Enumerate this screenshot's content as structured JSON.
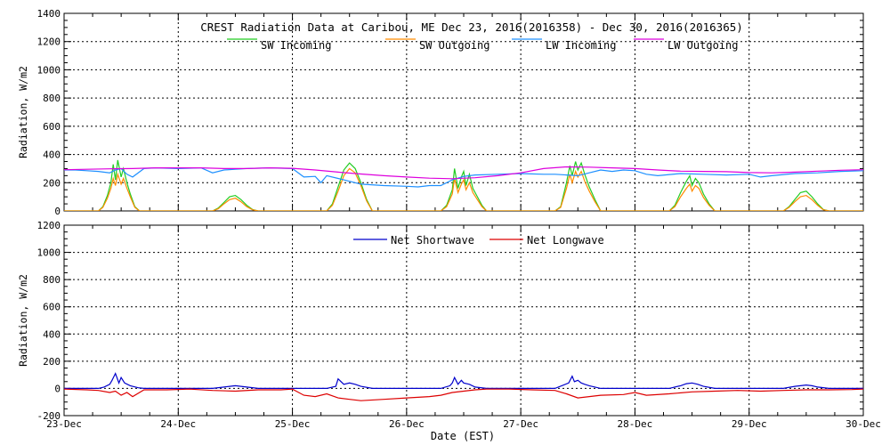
{
  "title": "CREST Radiation Data at Caribou, ME   Dec 23, 2016(2016358) - Dec 30, 2016(2016365)",
  "x_axis_label": "Date (EST)",
  "chart_data": [
    {
      "type": "line",
      "title": "CREST Radiation Data at Caribou, ME   Dec 23, 2016(2016358) - Dec 30, 2016(2016365)",
      "xlabel": "Date (EST)",
      "ylabel": "Radiation, W/m2",
      "x_ticks": [
        "23-Dec",
        "24-Dec",
        "25-Dec",
        "26-Dec",
        "27-Dec",
        "28-Dec",
        "29-Dec",
        "30-Dec"
      ],
      "xlim": [
        0,
        7
      ],
      "ylim": [
        0,
        1400
      ],
      "y_ticks": [
        0,
        200,
        400,
        600,
        800,
        1000,
        1200,
        1400
      ],
      "grid": true,
      "legend_position": "top",
      "series": [
        {
          "name": "SW Incoming",
          "color": "#22cc22",
          "x": [
            0,
            0.3,
            0.34,
            0.38,
            0.41,
            0.43,
            0.45,
            0.47,
            0.5,
            0.52,
            0.55,
            0.58,
            0.62,
            0.66,
            0.7,
            1.3,
            1.35,
            1.4,
            1.45,
            1.5,
            1.55,
            1.6,
            1.65,
            1.7,
            2.3,
            2.35,
            2.4,
            2.45,
            2.5,
            2.55,
            2.6,
            2.65,
            2.7,
            3.3,
            3.35,
            3.4,
            3.42,
            3.45,
            3.48,
            3.5,
            3.52,
            3.55,
            3.58,
            3.62,
            3.66,
            3.7,
            4.3,
            4.35,
            4.4,
            4.43,
            4.45,
            4.48,
            4.5,
            4.53,
            4.56,
            4.6,
            4.65,
            4.7,
            5.3,
            5.35,
            5.4,
            5.45,
            5.48,
            5.5,
            5.53,
            5.56,
            5.6,
            5.65,
            5.7,
            6.3,
            6.35,
            6.4,
            6.45,
            6.5,
            6.55,
            6.6,
            6.65,
            6.7,
            7
          ],
          "values": [
            0,
            0,
            30,
            110,
            200,
            330,
            220,
            360,
            240,
            300,
            200,
            120,
            30,
            0,
            0,
            0,
            20,
            60,
            100,
            110,
            80,
            40,
            10,
            0,
            0,
            50,
            170,
            290,
            340,
            300,
            200,
            80,
            0,
            0,
            40,
            150,
            300,
            160,
            240,
            280,
            180,
            260,
            160,
            100,
            40,
            0,
            0,
            30,
            200,
            320,
            250,
            350,
            290,
            340,
            260,
            170,
            80,
            0,
            0,
            40,
            130,
            210,
            250,
            180,
            230,
            200,
            120,
            50,
            0,
            0,
            30,
            80,
            130,
            140,
            100,
            50,
            10,
            0,
            0
          ]
        },
        {
          "name": "SW Outgoing",
          "color": "#ff8c00",
          "x": [
            0,
            0.3,
            0.34,
            0.38,
            0.41,
            0.43,
            0.45,
            0.47,
            0.5,
            0.52,
            0.55,
            0.58,
            0.62,
            0.66,
            0.7,
            1.3,
            1.35,
            1.4,
            1.45,
            1.5,
            1.55,
            1.6,
            1.65,
            1.7,
            2.3,
            2.35,
            2.4,
            2.45,
            2.5,
            2.55,
            2.6,
            2.65,
            2.7,
            3.3,
            3.35,
            3.4,
            3.42,
            3.45,
            3.48,
            3.5,
            3.52,
            3.55,
            3.58,
            3.62,
            3.66,
            3.7,
            4.3,
            4.35,
            4.4,
            4.43,
            4.45,
            4.48,
            4.5,
            4.53,
            4.56,
            4.6,
            4.65,
            4.7,
            5.3,
            5.35,
            5.4,
            5.45,
            5.48,
            5.5,
            5.53,
            5.56,
            5.6,
            5.65,
            5.7,
            6.3,
            6.35,
            6.4,
            6.45,
            6.5,
            6.55,
            6.6,
            6.65,
            6.7,
            7
          ],
          "values": [
            0,
            0,
            25,
            90,
            160,
            230,
            180,
            260,
            190,
            230,
            160,
            100,
            25,
            0,
            0,
            0,
            15,
            50,
            80,
            90,
            65,
            30,
            8,
            0,
            0,
            40,
            140,
            250,
            300,
            270,
            180,
            70,
            0,
            0,
            30,
            120,
            230,
            130,
            190,
            220,
            150,
            200,
            130,
            80,
            30,
            0,
            0,
            25,
            160,
            260,
            200,
            280,
            240,
            280,
            210,
            140,
            65,
            0,
            0,
            30,
            100,
            160,
            190,
            140,
            180,
            160,
            95,
            40,
            0,
            0,
            25,
            65,
            100,
            110,
            80,
            40,
            8,
            0,
            0
          ]
        },
        {
          "name": "LW Incoming",
          "color": "#1e90ff",
          "x": [
            0,
            0.1,
            0.2,
            0.3,
            0.4,
            0.45,
            0.5,
            0.55,
            0.6,
            0.7,
            0.8,
            1.0,
            1.2,
            1.3,
            1.4,
            1.5,
            1.6,
            1.8,
            2.0,
            2.1,
            2.2,
            2.25,
            2.3,
            2.4,
            2.5,
            2.6,
            2.8,
            3.0,
            3.1,
            3.2,
            3.3,
            3.4,
            3.5,
            3.6,
            3.8,
            4.0,
            4.2,
            4.3,
            4.4,
            4.5,
            4.6,
            4.7,
            4.8,
            4.9,
            5.0,
            5.1,
            5.2,
            5.4,
            5.6,
            5.8,
            6.0,
            6.1,
            6.2,
            6.4,
            6.6,
            6.8,
            7.0
          ],
          "values": [
            290,
            290,
            285,
            280,
            270,
            290,
            300,
            260,
            240,
            300,
            305,
            300,
            305,
            270,
            290,
            295,
            300,
            305,
            300,
            240,
            245,
            200,
            250,
            230,
            210,
            190,
            180,
            175,
            170,
            180,
            180,
            220,
            245,
            255,
            260,
            265,
            260,
            260,
            255,
            250,
            270,
            290,
            280,
            290,
            285,
            260,
            250,
            265,
            260,
            255,
            260,
            240,
            250,
            265,
            270,
            280,
            285
          ]
        },
        {
          "name": "LW Outgoing",
          "color": "#dd00dd",
          "x": [
            0,
            0.2,
            0.4,
            0.6,
            0.8,
            1.0,
            1.2,
            1.4,
            1.6,
            1.8,
            2.0,
            2.2,
            2.4,
            2.6,
            2.8,
            3.0,
            3.2,
            3.4,
            3.6,
            3.8,
            4.0,
            4.2,
            4.4,
            4.6,
            4.8,
            5.0,
            5.2,
            5.4,
            5.6,
            5.8,
            6.0,
            6.2,
            6.4,
            6.6,
            6.8,
            7.0
          ],
          "values": [
            292,
            295,
            298,
            300,
            305,
            305,
            305,
            300,
            300,
            305,
            302,
            290,
            275,
            262,
            250,
            240,
            232,
            228,
            235,
            250,
            270,
            300,
            312,
            310,
            305,
            300,
            290,
            282,
            280,
            278,
            272,
            270,
            275,
            282,
            288,
            292
          ]
        }
      ]
    },
    {
      "type": "line",
      "title": "",
      "xlabel": "Date (EST)",
      "ylabel": "Radiation, W/m2",
      "x_ticks": [
        "23-Dec",
        "24-Dec",
        "25-Dec",
        "26-Dec",
        "27-Dec",
        "28-Dec",
        "29-Dec",
        "30-Dec"
      ],
      "xlim": [
        0,
        7
      ],
      "ylim": [
        -200,
        1200
      ],
      "y_ticks": [
        -200,
        0,
        200,
        400,
        600,
        800,
        1000,
        1200
      ],
      "grid": true,
      "legend_position": "top",
      "series": [
        {
          "name": "Net Shortwave",
          "color": "#0000cc",
          "x": [
            0,
            0.3,
            0.35,
            0.4,
            0.42,
            0.45,
            0.48,
            0.5,
            0.53,
            0.58,
            0.65,
            0.7,
            1.3,
            1.45,
            1.5,
            1.55,
            1.7,
            2.3,
            2.38,
            2.4,
            2.45,
            2.5,
            2.55,
            2.6,
            2.7,
            3.3,
            3.38,
            3.4,
            3.42,
            3.45,
            3.48,
            3.5,
            3.55,
            3.6,
            3.7,
            4.3,
            4.42,
            4.45,
            4.47,
            4.5,
            4.53,
            4.56,
            4.6,
            4.7,
            5.3,
            5.4,
            5.45,
            5.5,
            5.55,
            5.6,
            5.7,
            6.3,
            6.4,
            6.45,
            6.5,
            6.55,
            6.6,
            6.7,
            7
          ],
          "values": [
            0,
            0,
            10,
            30,
            60,
            110,
            40,
            80,
            40,
            20,
            5,
            0,
            0,
            15,
            20,
            15,
            0,
            0,
            15,
            70,
            30,
            40,
            30,
            15,
            0,
            0,
            20,
            40,
            80,
            30,
            60,
            40,
            30,
            10,
            0,
            0,
            40,
            90,
            50,
            60,
            40,
            30,
            20,
            0,
            0,
            20,
            35,
            40,
            30,
            15,
            0,
            0,
            15,
            20,
            25,
            20,
            10,
            0,
            0
          ]
        },
        {
          "name": "Net Longwave",
          "color": "#dd0000",
          "x": [
            0,
            0.2,
            0.3,
            0.4,
            0.45,
            0.5,
            0.55,
            0.6,
            0.7,
            0.9,
            1.1,
            1.3,
            1.5,
            1.7,
            1.9,
            2.0,
            2.1,
            2.2,
            2.3,
            2.4,
            2.5,
            2.6,
            2.8,
            3.0,
            3.2,
            3.3,
            3.4,
            3.5,
            3.6,
            3.7,
            3.9,
            4.1,
            4.3,
            4.4,
            4.5,
            4.6,
            4.7,
            4.9,
            5.0,
            5.1,
            5.3,
            5.5,
            5.7,
            5.9,
            6.1,
            6.3,
            6.5,
            6.7,
            6.9,
            7.0
          ],
          "values": [
            -5,
            -10,
            -15,
            -30,
            -20,
            -50,
            -30,
            -60,
            -10,
            -10,
            -5,
            -15,
            -20,
            -10,
            -10,
            -5,
            -50,
            -60,
            -40,
            -70,
            -80,
            -90,
            -80,
            -70,
            -60,
            -50,
            -30,
            -20,
            -10,
            -5,
            -5,
            -10,
            -15,
            -40,
            -70,
            -60,
            -50,
            -45,
            -30,
            -50,
            -40,
            -25,
            -20,
            -15,
            -20,
            -15,
            -10,
            -10,
            -8,
            -5
          ]
        }
      ]
    }
  ]
}
